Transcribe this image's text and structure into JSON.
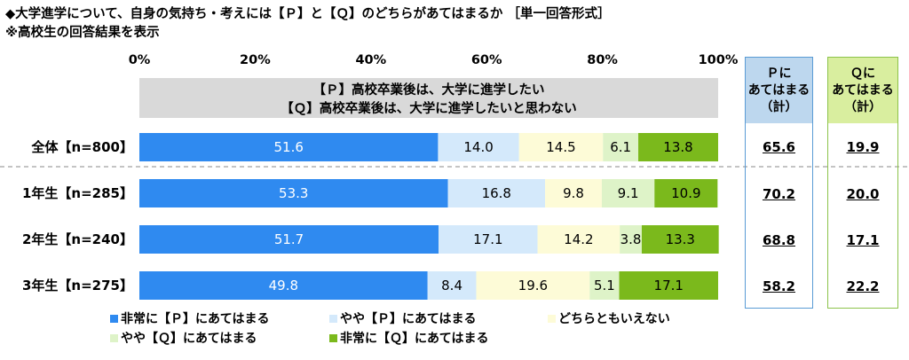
{
  "title": "◆大学進学について、自身の気持ち・考えには【Ｐ】と【Ｑ】のどちらがあてはまるか ［単一回答形式］",
  "subtitle": "※高校生の回答結果を表示",
  "chart_data": {
    "type": "bar",
    "orientation": "horizontal-stacked-100",
    "xlim": [
      0,
      100
    ],
    "ticks": [
      "0%",
      "20%",
      "40%",
      "60%",
      "80%",
      "100%"
    ],
    "statement_p": "【Ｐ】高校卒業後は、大学に進学したい",
    "statement_q": "【Ｑ】高校卒業後は、大学に進学したいと思わない",
    "categories": [
      "全体【n=800】",
      "1年生【n=285】",
      "2年生【n=240】",
      "3年生【n=275】"
    ],
    "series": [
      {
        "name": "非常に【Ｐ】にあてはまる",
        "color": "#2f8af0",
        "label_color": "#ffffff",
        "values": [
          51.6,
          53.3,
          51.7,
          49.8
        ]
      },
      {
        "name": "やや【Ｐ】にあてはまる",
        "color": "#d4e9fb",
        "label_color": "#000000",
        "values": [
          14.0,
          16.8,
          17.1,
          8.4
        ]
      },
      {
        "name": "どちらともいえない",
        "color": "#fdfbd7",
        "label_color": "#000000",
        "values": [
          14.5,
          9.8,
          14.2,
          19.6
        ]
      },
      {
        "name": "やや【Ｑ】にあてはまる",
        "color": "#def3c8",
        "label_color": "#000000",
        "values": [
          6.1,
          9.1,
          3.8,
          5.1
        ]
      },
      {
        "name": "非常に【Ｑ】にあてはまる",
        "color": "#7bb91c",
        "label_color": "#000000",
        "values": [
          13.8,
          10.9,
          13.3,
          17.1
        ]
      }
    ],
    "legend_position": "bottom"
  },
  "summary": {
    "p": {
      "header": [
        "Ｐに",
        "あてはまる",
        "（計）"
      ],
      "values": [
        "65.6",
        "70.2",
        "68.8",
        "58.2"
      ],
      "color": "#5a9bd5"
    },
    "q": {
      "header": [
        "Ｑに",
        "あてはまる",
        "（計）"
      ],
      "values": [
        "19.9",
        "20.0",
        "17.1",
        "22.2"
      ],
      "color": "#8cc34a"
    }
  }
}
